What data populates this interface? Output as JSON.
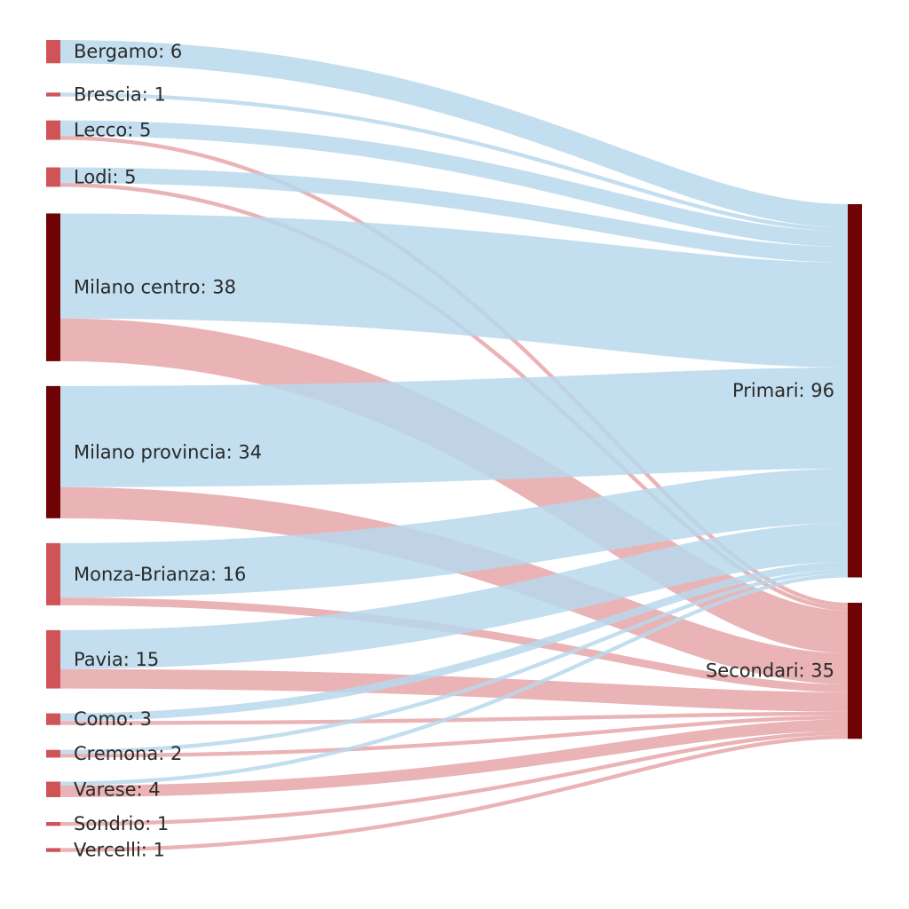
{
  "chart_data": {
    "type": "sankey",
    "colors": {
      "primary_flow": "#b8d8ec",
      "secondary_flow": "#e39a9c",
      "small_node": "#d05457",
      "large_node": "#6e0204"
    },
    "sources": [
      {
        "id": "bergamo",
        "name": "Bergamo",
        "value": 6,
        "label": "Bergamo: 6"
      },
      {
        "id": "brescia",
        "name": "Brescia",
        "value": 1,
        "label": "Brescia: 1"
      },
      {
        "id": "lecco",
        "name": "Lecco",
        "value": 5,
        "label": "Lecco: 5"
      },
      {
        "id": "lodi",
        "name": "Lodi",
        "value": 5,
        "label": "Lodi: 5"
      },
      {
        "id": "milano-centro",
        "name": "Milano centro",
        "value": 38,
        "label": "Milano centro: 38"
      },
      {
        "id": "milano-provincia",
        "name": "Milano provincia",
        "value": 34,
        "label": "Milano provincia: 34"
      },
      {
        "id": "monza-brianza",
        "name": "Monza-Brianza",
        "value": 16,
        "label": "Monza-Brianza: 16"
      },
      {
        "id": "pavia",
        "name": "Pavia",
        "value": 15,
        "label": "Pavia: 15"
      },
      {
        "id": "como",
        "name": "Como",
        "value": 3,
        "label": "Como: 3"
      },
      {
        "id": "cremona",
        "name": "Cremona",
        "value": 2,
        "label": "Cremona: 2"
      },
      {
        "id": "varese",
        "name": "Varese",
        "value": 4,
        "label": "Varese: 4"
      },
      {
        "id": "sondrio",
        "name": "Sondrio",
        "value": 1,
        "label": "Sondrio: 1"
      },
      {
        "id": "vercelli",
        "name": "Vercelli",
        "value": 1,
        "label": "Vercelli: 1"
      }
    ],
    "targets": [
      {
        "id": "primari",
        "name": "Primari",
        "value": 96,
        "label": "Primari: 96"
      },
      {
        "id": "secondari",
        "name": "Secondari",
        "value": 35,
        "label": "Secondari: 35"
      }
    ],
    "links": [
      {
        "source": "bergamo",
        "target": "primari",
        "value": 6
      },
      {
        "source": "brescia",
        "target": "primari",
        "value": 1
      },
      {
        "source": "lecco",
        "target": "primari",
        "value": 4
      },
      {
        "source": "lecco",
        "target": "secondari",
        "value": 1
      },
      {
        "source": "lodi",
        "target": "primari",
        "value": 4
      },
      {
        "source": "lodi",
        "target": "secondari",
        "value": 1
      },
      {
        "source": "milano-centro",
        "target": "primari",
        "value": 27
      },
      {
        "source": "milano-centro",
        "target": "secondari",
        "value": 11
      },
      {
        "source": "milano-provincia",
        "target": "primari",
        "value": 26
      },
      {
        "source": "milano-provincia",
        "target": "secondari",
        "value": 8
      },
      {
        "source": "monza-brianza",
        "target": "primari",
        "value": 14
      },
      {
        "source": "monza-brianza",
        "target": "secondari",
        "value": 2
      },
      {
        "source": "pavia",
        "target": "primari",
        "value": 10
      },
      {
        "source": "pavia",
        "target": "secondari",
        "value": 5
      },
      {
        "source": "como",
        "target": "primari",
        "value": 2
      },
      {
        "source": "como",
        "target": "secondari",
        "value": 1
      },
      {
        "source": "cremona",
        "target": "primari",
        "value": 1
      },
      {
        "source": "cremona",
        "target": "secondari",
        "value": 1
      },
      {
        "source": "varese",
        "target": "primari",
        "value": 1
      },
      {
        "source": "varese",
        "target": "secondari",
        "value": 3
      },
      {
        "source": "sondrio",
        "target": "secondari",
        "value": 1
      },
      {
        "source": "vercelli",
        "target": "secondari",
        "value": 1
      }
    ]
  }
}
